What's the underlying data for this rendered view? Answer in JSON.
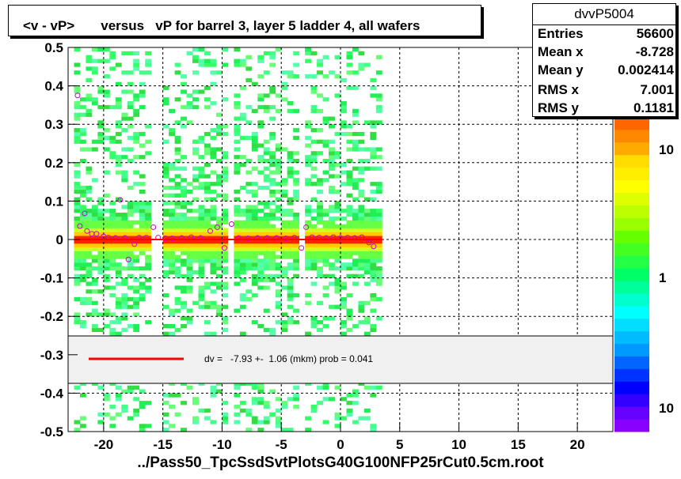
{
  "title": "<v - vP>       versus   vP for barrel 3, layer 5 ladder 4, all wafers",
  "stats": {
    "name": "dvvP5004",
    "rows": [
      {
        "label": "Entries",
        "value": "56600"
      },
      {
        "label": "Mean x",
        "value": "-8.728"
      },
      {
        "label": "Mean y",
        "value": "0.002414"
      },
      {
        "label": "RMS x",
        "value": "7.001"
      },
      {
        "label": "RMS y",
        "value": "0.1181"
      }
    ]
  },
  "fit_legend": "dv =   -7.93 +-  1.06 (mkm) prob = 0.041",
  "footer": "../Pass50_TpcSsdSvtPlotsG40G100NFP25rCut0.5cm.root",
  "colors": {
    "fit_line": "#ff0000",
    "grid": "#000000",
    "legend_bg": "#f0f0f0"
  },
  "chart_data": {
    "type": "heatmap",
    "title": "<v - vP>       versus   vP for barrel 3, layer 5 ladder 4, all wafers",
    "xlabel": "",
    "ylabel": "",
    "xlim": [
      -23,
      23
    ],
    "ylim": [
      -0.5,
      0.5
    ],
    "x_ticks": [
      "-20",
      "-15",
      "-10",
      "-5",
      "0",
      "5",
      "10",
      "15",
      "20"
    ],
    "x_tick_values": [
      -20,
      -15,
      -10,
      -5,
      0,
      5,
      10,
      15,
      20
    ],
    "y_ticks": [
      "0.5",
      "0.4",
      "0.3",
      "0.2",
      "0.1",
      "0",
      "-0.1",
      "-0.2",
      "-0.3",
      "-0.4",
      "-0.5"
    ],
    "y_tick_values": [
      0.5,
      0.4,
      0.3,
      0.2,
      0.1,
      0,
      -0.1,
      -0.2,
      -0.3,
      -0.4,
      -0.5
    ],
    "grid": true,
    "data_x_range": [
      -22.5,
      3.5
    ],
    "empty_columns": [
      -15.5,
      -9.3,
      -3.3
    ],
    "colorbar": {
      "scale": "log",
      "labels": [
        "10",
        "1",
        "10"
      ],
      "label_values": [
        10,
        1,
        0.1
      ]
    },
    "fit": {
      "x": [
        -22,
        3.5
      ],
      "y": [
        0.0,
        0.0
      ]
    },
    "profile_points": [
      {
        "x": -22.2,
        "y": 0.375
      },
      {
        "x": -22.0,
        "y": 0.035
      },
      {
        "x": -21.6,
        "y": 0.068
      },
      {
        "x": -21.4,
        "y": 0.022
      },
      {
        "x": -21.0,
        "y": 0.015
      },
      {
        "x": -20.6,
        "y": 0.015
      },
      {
        "x": -20.0,
        "y": 0.008
      },
      {
        "x": -19.6,
        "y": 0.005
      },
      {
        "x": -19.0,
        "y": 0.004
      },
      {
        "x": -18.6,
        "y": 0.103
      },
      {
        "x": -18.2,
        "y": 0.004
      },
      {
        "x": -17.9,
        "y": -0.052
      },
      {
        "x": -17.4,
        "y": -0.012
      },
      {
        "x": -17.0,
        "y": 0.005
      },
      {
        "x": -16.4,
        "y": 0.005
      },
      {
        "x": -15.8,
        "y": 0.032
      },
      {
        "x": -15.4,
        "y": 0.005
      },
      {
        "x": -14.8,
        "y": 0.003
      },
      {
        "x": -14.2,
        "y": 0.003
      },
      {
        "x": -13.4,
        "y": 0.004
      },
      {
        "x": -12.6,
        "y": 0.006
      },
      {
        "x": -11.8,
        "y": 0.004
      },
      {
        "x": -11.0,
        "y": 0.022
      },
      {
        "x": -10.4,
        "y": 0.032
      },
      {
        "x": -9.8,
        "y": -0.022
      },
      {
        "x": -9.2,
        "y": 0.04
      },
      {
        "x": -8.6,
        "y": 0.004
      },
      {
        "x": -7.8,
        "y": 0.003
      },
      {
        "x": -7.0,
        "y": 0.004
      },
      {
        "x": -6.2,
        "y": 0.004
      },
      {
        "x": -5.4,
        "y": 0.004
      },
      {
        "x": -4.6,
        "y": 0.003
      },
      {
        "x": -3.9,
        "y": 0.005
      },
      {
        "x": -3.3,
        "y": -0.022
      },
      {
        "x": -2.9,
        "y": 0.032
      },
      {
        "x": -2.4,
        "y": 0.006
      },
      {
        "x": -1.8,
        "y": 0.005
      },
      {
        "x": -1.2,
        "y": 0.004
      },
      {
        "x": -0.6,
        "y": 0.006
      },
      {
        "x": 0.0,
        "y": 0.004
      },
      {
        "x": 0.6,
        "y": 0.005
      },
      {
        "x": 1.2,
        "y": 0.004
      },
      {
        "x": 1.8,
        "y": 0.006
      },
      {
        "x": 2.4,
        "y": -0.008
      },
      {
        "x": 2.8,
        "y": -0.018
      }
    ]
  }
}
